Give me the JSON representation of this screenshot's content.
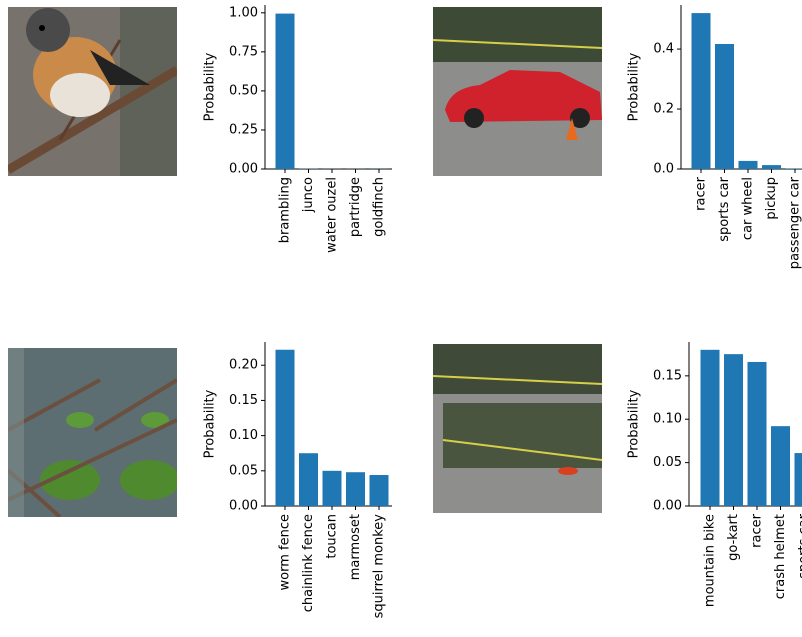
{
  "chart_data": [
    {
      "type": "bar",
      "ylabel": "Probability",
      "color": "#1f77b4",
      "categories": [
        "brambling",
        "junco",
        "water ouzel",
        "partridge",
        "goldfinch"
      ],
      "values": [
        0.995,
        0.002,
        0.001,
        0.001,
        0.001
      ],
      "ylim": [
        0,
        1.05
      ],
      "yticks": [
        {
          "value": 0,
          "label": "0.00"
        },
        {
          "value": 0.25,
          "label": "0.25"
        },
        {
          "value": 0.5,
          "label": "0.50"
        },
        {
          "value": 0.75,
          "label": "0.75"
        },
        {
          "value": 1,
          "label": "1.00"
        }
      ]
    },
    {
      "type": "bar",
      "ylabel": "Probability",
      "color": "#1f77b4",
      "categories": [
        "racer",
        "sports car",
        "car wheel",
        "pickup",
        "passenger car"
      ],
      "values": [
        0.52,
        0.417,
        0.027,
        0.013,
        0.002
      ],
      "ylim": [
        0,
        0.547
      ],
      "yticks": [
        {
          "value": 0,
          "label": "0.0"
        },
        0.2,
        0.4
      ]
    },
    {
      "type": "bar",
      "ylabel": "Probability",
      "color": "#1f77b4",
      "categories": [
        "worm fence",
        "chainlink fence",
        "toucan",
        "marmoset",
        "squirrel monkey"
      ],
      "values": [
        0.222,
        0.075,
        0.05,
        0.048,
        0.044
      ],
      "ylim": [
        0,
        0.233
      ],
      "yticks": [
        {
          "value": 0,
          "label": "0.00"
        },
        0.05,
        {
          "value": 0.1,
          "label": "0.10"
        },
        0.15,
        {
          "value": 0.2,
          "label": "0.20"
        }
      ]
    },
    {
      "type": "bar",
      "ylabel": "Probability",
      "color": "#1f77b4",
      "categories": [
        "mountain bike",
        "go-kart",
        "racer",
        "crash helmet",
        "sports car"
      ],
      "values": [
        0.18,
        0.175,
        0.166,
        0.092,
        0.061
      ],
      "ylim": [
        0,
        0.189
      ],
      "yticks": [
        {
          "value": 0,
          "label": "0.00"
        },
        0.05,
        {
          "value": 0.1,
          "label": "0.10"
        },
        0.15
      ]
    }
  ]
}
